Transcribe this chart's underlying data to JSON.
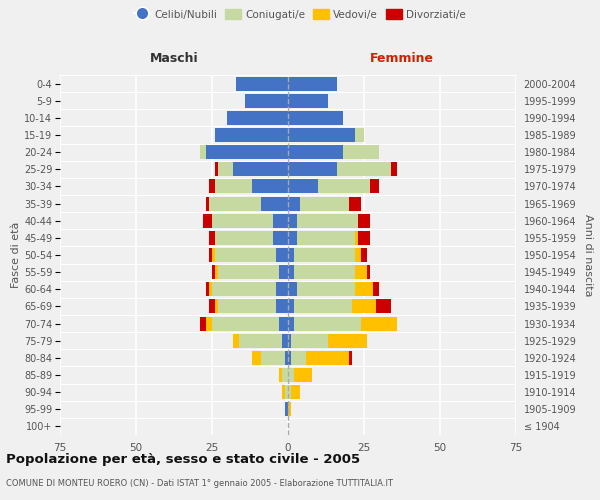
{
  "age_groups": [
    "100+",
    "95-99",
    "90-94",
    "85-89",
    "80-84",
    "75-79",
    "70-74",
    "65-69",
    "60-64",
    "55-59",
    "50-54",
    "45-49",
    "40-44",
    "35-39",
    "30-34",
    "25-29",
    "20-24",
    "15-19",
    "10-14",
    "5-9",
    "0-4"
  ],
  "birth_years": [
    "≤ 1904",
    "1905-1909",
    "1910-1914",
    "1915-1919",
    "1920-1924",
    "1925-1929",
    "1930-1934",
    "1935-1939",
    "1940-1944",
    "1945-1949",
    "1950-1954",
    "1955-1959",
    "1960-1964",
    "1965-1969",
    "1970-1974",
    "1975-1979",
    "1980-1984",
    "1985-1989",
    "1990-1994",
    "1995-1999",
    "2000-2004"
  ],
  "male": {
    "celibi": [
      0,
      1,
      0,
      0,
      1,
      2,
      3,
      4,
      4,
      3,
      4,
      5,
      5,
      9,
      12,
      18,
      27,
      24,
      20,
      14,
      17
    ],
    "coniugati": [
      0,
      0,
      1,
      2,
      8,
      14,
      22,
      19,
      21,
      20,
      20,
      19,
      20,
      17,
      12,
      5,
      2,
      0,
      0,
      0,
      0
    ],
    "vedovi": [
      0,
      0,
      1,
      1,
      3,
      2,
      2,
      1,
      1,
      1,
      1,
      0,
      0,
      0,
      0,
      0,
      0,
      0,
      0,
      0,
      0
    ],
    "divorziati": [
      0,
      0,
      0,
      0,
      0,
      0,
      2,
      2,
      1,
      1,
      1,
      2,
      3,
      1,
      2,
      1,
      0,
      0,
      0,
      0,
      0
    ]
  },
  "female": {
    "nubili": [
      0,
      0,
      0,
      0,
      1,
      1,
      2,
      2,
      3,
      2,
      2,
      3,
      3,
      4,
      10,
      16,
      18,
      22,
      18,
      13,
      16
    ],
    "coniugate": [
      0,
      0,
      1,
      2,
      5,
      12,
      22,
      19,
      19,
      20,
      20,
      19,
      20,
      16,
      17,
      18,
      12,
      3,
      0,
      0,
      0
    ],
    "vedove": [
      0,
      1,
      3,
      6,
      14,
      13,
      12,
      8,
      6,
      4,
      2,
      1,
      0,
      0,
      0,
      0,
      0,
      0,
      0,
      0,
      0
    ],
    "divorziate": [
      0,
      0,
      0,
      0,
      1,
      0,
      0,
      5,
      2,
      1,
      2,
      4,
      4,
      4,
      3,
      2,
      0,
      0,
      0,
      0,
      0
    ]
  },
  "colors": {
    "celibi": "#4472c4",
    "coniugati": "#c5d9a0",
    "vedovi": "#ffc000",
    "divorziati": "#cc0000"
  },
  "title": "Popolazione per età, sesso e stato civile - 2005",
  "subtitle": "COMUNE DI MONTEU ROERO (CN) - Dati ISTAT 1° gennaio 2005 - Elaborazione TUTTITALIA.IT",
  "ylabel_left": "Fasce di età",
  "ylabel_right": "Anni di nascita",
  "xlabel_left": "Maschi",
  "xlabel_right": "Femmine",
  "xlim": 75,
  "legend_labels": [
    "Celibi/Nubili",
    "Coniugati/e",
    "Vedovi/e",
    "Divorziati/e"
  ],
  "bg_color": "#f0f0f0",
  "bar_height": 0.82
}
